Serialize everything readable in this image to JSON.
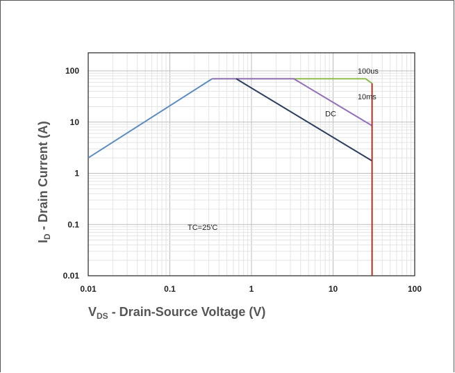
{
  "chart_data": {
    "type": "line",
    "xscale": "log",
    "yscale": "log",
    "xlim": [
      0.01,
      100
    ],
    "ylim": [
      0.01,
      100
    ],
    "x_ticks": [
      "0.01",
      "0.1",
      "1",
      "10",
      "100"
    ],
    "y_ticks": [
      "100",
      "10",
      "1",
      "0.1",
      "0.01"
    ],
    "grid": true,
    "xlabel": {
      "main": "V",
      "sub": "DS",
      "rest": " - Drain-Source Voltage (V)"
    },
    "ylabel": {
      "main": "I",
      "sub": "D",
      "rest": " - Drain Current (A)"
    },
    "annotation": "TC=25'C",
    "series": [
      {
        "name": "",
        "color": "#5b8cc0",
        "x": [
          0.01,
          0.33
        ],
        "y": [
          2,
          70
        ]
      },
      {
        "name": "100us",
        "color": "#8cba4c",
        "x": [
          0.33,
          25,
          30
        ],
        "y": [
          70,
          70,
          57
        ]
      },
      {
        "name": "10ms",
        "color": "#9370b8",
        "x": [
          0.33,
          3.3,
          30
        ],
        "y": [
          70,
          70,
          8.5
        ]
      },
      {
        "name": "DC",
        "color": "#2d3f5e",
        "x": [
          0.65,
          30
        ],
        "y": [
          70,
          1.75
        ]
      },
      {
        "name": "",
        "color": "#b03020",
        "x": [
          30,
          30
        ],
        "y": [
          57,
          0.01
        ]
      }
    ],
    "labels": [
      {
        "text": "100us",
        "x": 20,
        "y": 88
      },
      {
        "text": "10ms",
        "x": 20,
        "y": 28
      },
      {
        "text": "DC",
        "x": 8,
        "y": 13
      }
    ]
  }
}
